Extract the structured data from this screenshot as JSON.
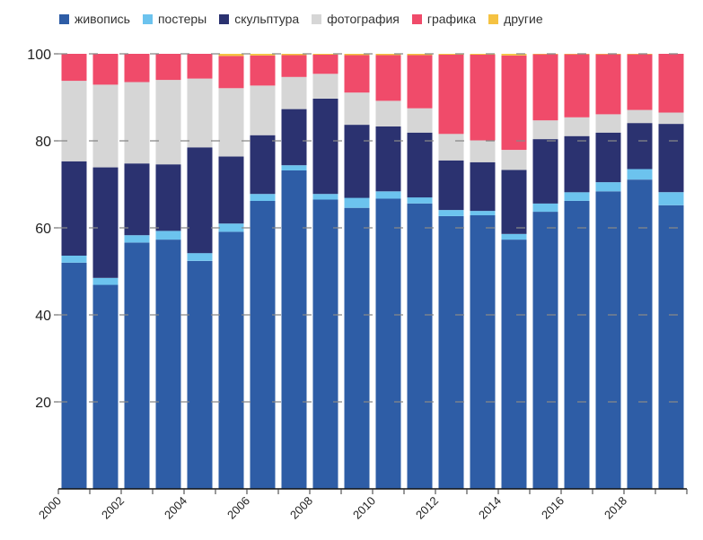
{
  "chart_data": {
    "type": "bar",
    "stacked": true,
    "title": "",
    "xlabel": "",
    "ylabel": "",
    "ylim": [
      0,
      100
    ],
    "yticks": [
      20,
      40,
      60,
      80,
      100
    ],
    "grid": "horizontal dashed",
    "legend_placement": "top",
    "categories": [
      "2000",
      "2001",
      "2002",
      "2003",
      "2004",
      "2005",
      "2006",
      "2007",
      "2008",
      "2009",
      "2010",
      "2011",
      "2012",
      "2013",
      "2014",
      "2015",
      "2016",
      "2017",
      "2018",
      "2019"
    ],
    "xtick_labels": [
      "2000",
      "2002",
      "2004",
      "2006",
      "2008",
      "2010",
      "2012",
      "2014",
      "2016",
      "2018"
    ],
    "series": [
      {
        "name": "живопись",
        "color": "#2E5DA6",
        "values": [
          52.0,
          46.9,
          56.6,
          57.3,
          52.4,
          59.1,
          66.2,
          73.2,
          66.5,
          64.6,
          66.7,
          65.6,
          62.7,
          62.9,
          57.3,
          63.7,
          66.2,
          68.4,
          71.1,
          65.2
        ]
      },
      {
        "name": "постеры",
        "color": "#6CC3EE",
        "values": [
          1.6,
          1.6,
          1.7,
          2.0,
          1.8,
          1.9,
          1.6,
          1.2,
          1.3,
          2.3,
          1.7,
          1.4,
          1.4,
          1.0,
          1.3,
          1.9,
          2.0,
          2.1,
          2.4,
          3.0
        ]
      },
      {
        "name": "скульптура",
        "color": "#2B3270",
        "values": [
          21.7,
          25.4,
          16.5,
          15.3,
          24.3,
          15.4,
          13.5,
          12.9,
          21.9,
          16.8,
          14.9,
          14.9,
          11.4,
          11.2,
          14.7,
          14.8,
          12.9,
          11.4,
          10.6,
          15.7
        ]
      },
      {
        "name": "фотография",
        "color": "#D6D6D6",
        "values": [
          18.5,
          19.0,
          18.7,
          19.4,
          15.8,
          15.7,
          11.4,
          7.4,
          5.7,
          7.4,
          5.9,
          5.6,
          6.1,
          5.0,
          4.6,
          4.3,
          4.3,
          4.2,
          3.0,
          2.6
        ]
      },
      {
        "name": "графика",
        "color": "#F04B6A",
        "values": [
          6.2,
          7.1,
          6.5,
          6.0,
          5.7,
          7.4,
          6.9,
          5.0,
          4.4,
          8.6,
          10.5,
          12.2,
          18.2,
          19.7,
          21.7,
          15.2,
          14.5,
          13.8,
          12.8,
          13.5
        ]
      },
      {
        "name": "другие",
        "color": "#F5C242",
        "values": [
          0.0,
          0.0,
          0.0,
          0.0,
          0.0,
          0.5,
          0.4,
          0.3,
          0.2,
          0.3,
          0.3,
          0.3,
          0.2,
          0.2,
          0.4,
          0.1,
          0.1,
          0.1,
          0.1,
          0.0
        ]
      }
    ]
  }
}
